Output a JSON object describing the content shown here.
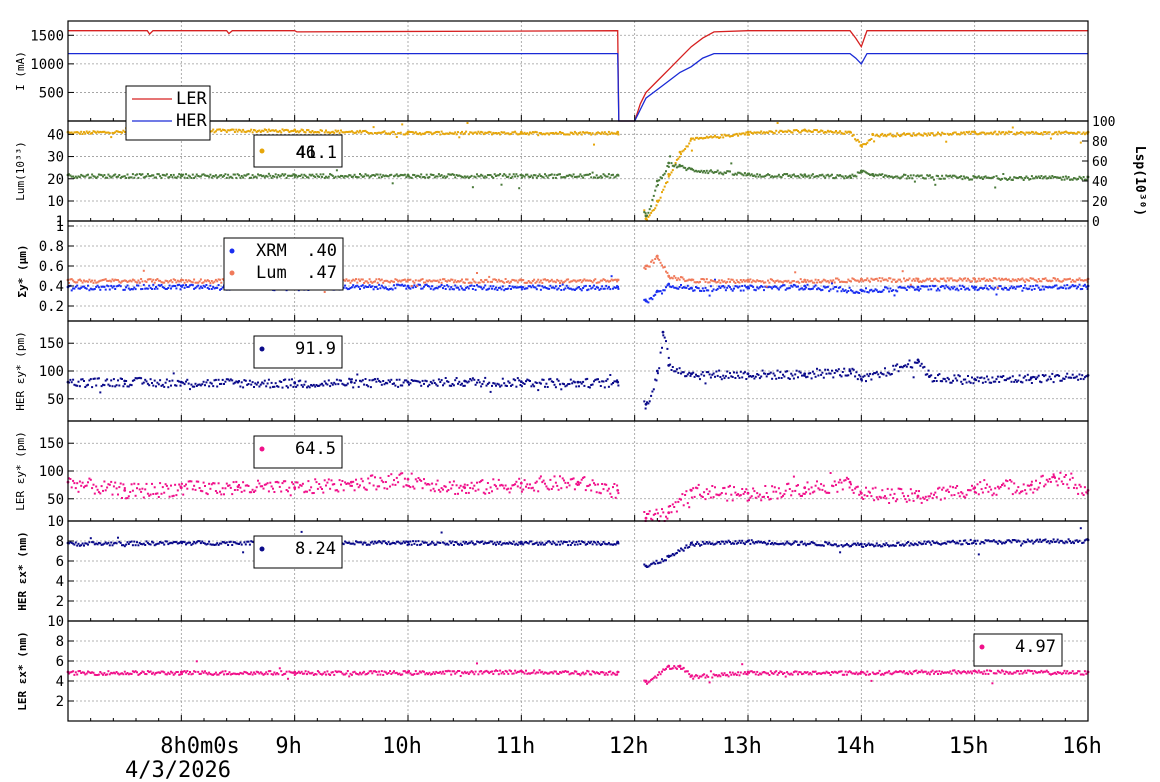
{
  "time_axis": {
    "ticks": [
      "8h0m0s",
      "9h",
      "10h",
      "11h",
      "12h",
      "13h",
      "14h",
      "15h",
      "16h"
    ],
    "date": "4/3/2026",
    "x_range_hours": [
      7.0,
      16.0
    ]
  },
  "colors": {
    "ler_current": "#d62020",
    "her_current": "#1a2ad6",
    "lum": "#e6a60a",
    "lsp": "#4a7a3a",
    "xrm": "#1a2ef0",
    "lum_size": "#f07a5a",
    "her_emit": "#0a0a8a",
    "ler_emit": "#f0108a"
  },
  "panels": [
    {
      "id": "current",
      "ylabel": "I (mA)",
      "yticks": [
        "500",
        "1000",
        "1500"
      ],
      "ylim": [
        0,
        1750
      ],
      "legend": [
        {
          "name": "LER",
          "value": ""
        },
        {
          "name": "HER",
          "value": ""
        }
      ]
    },
    {
      "id": "luminosity",
      "ylabel": "Lum(10³³)",
      "yticks": [
        "1",
        "10",
        "20",
        "30",
        "40"
      ],
      "ylim": [
        1,
        46
      ],
      "y2label": "Lsp(10³⁰)",
      "y2ticks": [
        "0",
        "20",
        "40",
        "60",
        "80",
        "100"
      ],
      "y2lim": [
        0,
        100
      ],
      "legend": [
        {
          "name": "",
          "value": "41.1"
        },
        {
          "name": "",
          "value": "46"
        }
      ]
    },
    {
      "id": "sigma_y",
      "ylabel": "Σy* (μm)",
      "yticks": [
        "0.2",
        "0.4",
        "0.6",
        "0.8",
        "1"
      ],
      "ylim": [
        0.05,
        1.05
      ],
      "legend": [
        {
          "name": "XRM",
          "value": ".40"
        },
        {
          "name": "Lum",
          "value": ".47"
        }
      ]
    },
    {
      "id": "her_emit_y",
      "ylabel": "HER εy* (pm)",
      "yticks": [
        "50",
        "100",
        "150"
      ],
      "ylim": [
        10,
        190
      ],
      "legend": [
        {
          "name": "",
          "value": "91.9"
        }
      ]
    },
    {
      "id": "ler_emit_y",
      "ylabel": "LER εy* (pm)",
      "yticks": [
        "10",
        "50",
        "100",
        "150"
      ],
      "ylim": [
        10,
        190
      ],
      "legend": [
        {
          "name": "",
          "value": "64.5"
        }
      ]
    },
    {
      "id": "her_emit_x",
      "ylabel": "HER εx* (nm)",
      "yticks": [
        "2",
        "4",
        "6",
        "8"
      ],
      "ylim": [
        0,
        10
      ],
      "legend": [
        {
          "name": "",
          "value": "8.24"
        }
      ]
    },
    {
      "id": "ler_emit_x",
      "ylabel": "LER εx* (nm)",
      "yticks": [
        "2",
        "4",
        "6",
        "8",
        "10"
      ],
      "ylim": [
        0,
        10
      ],
      "legend": [
        {
          "name": "",
          "value": "4.97"
        }
      ]
    }
  ],
  "chart_data": [
    {
      "type": "line",
      "panel": "current",
      "ylabel": "I (mA)",
      "ylim": [
        0,
        1750
      ],
      "series": [
        {
          "name": "LER",
          "x": [
            7.0,
            7.7,
            7.72,
            7.75,
            8.4,
            8.42,
            8.45,
            9.0,
            9.02,
            11.85,
            11.86,
            11.9,
            12.0,
            12.05,
            12.1,
            12.2,
            12.3,
            12.4,
            12.5,
            12.6,
            12.7,
            13.0,
            13.9,
            13.95,
            14.0,
            14.05,
            16.0
          ],
          "y": [
            1580,
            1580,
            1520,
            1580,
            1580,
            1530,
            1580,
            1580,
            1560,
            1580,
            0,
            0,
            0,
            300,
            500,
            700,
            900,
            1100,
            1300,
            1450,
            1560,
            1580,
            1580,
            1450,
            1300,
            1580,
            1580
          ]
        },
        {
          "name": "HER",
          "x": [
            7.0,
            11.85,
            11.86,
            11.9,
            12.0,
            12.05,
            12.1,
            12.2,
            12.3,
            12.4,
            12.5,
            12.6,
            12.7,
            13.0,
            13.9,
            13.95,
            14.0,
            14.05,
            16.0
          ],
          "y": [
            1180,
            1180,
            0,
            0,
            0,
            200,
            400,
            550,
            700,
            850,
            950,
            1100,
            1180,
            1180,
            1180,
            1100,
            1000,
            1180,
            1180
          ]
        }
      ]
    },
    {
      "type": "scatter",
      "panel": "luminosity",
      "series": [
        {
          "name": "",
          "axis": "left",
          "x": [
            7.0,
            8.0,
            9.0,
            10.0,
            11.0,
            11.85,
            12.1,
            12.2,
            12.3,
            12.4,
            12.5,
            13.0,
            13.5,
            13.9,
            14.0,
            14.1,
            15.0,
            16.0
          ],
          "y": [
            41,
            42,
            42,
            41,
            41,
            41,
            2,
            10,
            22,
            32,
            38,
            41,
            42,
            41,
            35,
            40,
            41,
            41
          ]
        },
        {
          "name": "",
          "axis": "right",
          "x": [
            7.0,
            8.0,
            9.0,
            10.0,
            11.0,
            11.85,
            12.1,
            12.2,
            12.3,
            12.4,
            12.5,
            13.0,
            13.5,
            13.9,
            14.0,
            14.1,
            15.0,
            16.0
          ],
          "y": [
            46,
            46,
            46,
            46,
            46,
            46,
            5,
            40,
            58,
            55,
            52,
            47,
            46,
            45,
            50,
            46,
            44,
            44
          ]
        }
      ]
    },
    {
      "type": "scatter",
      "panel": "sigma_y",
      "series": [
        {
          "name": "XRM",
          "x": [
            7.0,
            8.0,
            9.0,
            10.0,
            11.0,
            11.85,
            12.1,
            12.2,
            12.3,
            12.5,
            13.0,
            13.5,
            14.0,
            14.5,
            15.0,
            16.0
          ],
          "y": [
            0.39,
            0.4,
            0.39,
            0.4,
            0.39,
            0.39,
            0.25,
            0.35,
            0.42,
            0.38,
            0.39,
            0.4,
            0.36,
            0.39,
            0.39,
            0.4
          ]
        },
        {
          "name": "Lum",
          "x": [
            7.0,
            8.0,
            9.0,
            10.0,
            11.0,
            11.85,
            12.1,
            12.2,
            12.3,
            12.5,
            13.0,
            13.5,
            14.0,
            14.5,
            15.0,
            16.0
          ],
          "y": [
            0.46,
            0.46,
            0.46,
            0.46,
            0.46,
            0.46,
            0.6,
            0.7,
            0.5,
            0.46,
            0.46,
            0.46,
            0.47,
            0.47,
            0.47,
            0.47
          ]
        }
      ]
    },
    {
      "type": "scatter",
      "panel": "her_emit_y",
      "series": [
        {
          "name": "",
          "x": [
            7.0,
            7.5,
            8.0,
            8.5,
            9.0,
            9.5,
            10.0,
            10.5,
            11.0,
            11.5,
            11.85,
            12.1,
            12.2,
            12.25,
            12.3,
            12.5,
            13.0,
            13.5,
            13.9,
            14.0,
            14.5,
            14.6,
            15.0,
            15.5,
            16.0
          ],
          "y": [
            80,
            82,
            80,
            80,
            79,
            80,
            80,
            82,
            81,
            80,
            80,
            40,
            100,
            170,
            110,
            95,
            95,
            95,
            100,
            85,
            120,
            90,
            85,
            88,
            92
          ]
        }
      ]
    },
    {
      "type": "scatter",
      "panel": "ler_emit_y",
      "series": [
        {
          "name": "",
          "x": [
            7.0,
            7.5,
            8.0,
            8.5,
            9.0,
            9.5,
            10.0,
            10.5,
            11.0,
            11.5,
            11.85,
            12.1,
            12.3,
            12.5,
            13.0,
            13.5,
            13.9,
            14.0,
            14.5,
            15.0,
            15.5,
            15.7,
            16.0
          ],
          "y": [
            80,
            65,
            70,
            72,
            70,
            80,
            85,
            70,
            78,
            80,
            65,
            15,
            25,
            65,
            60,
            70,
            80,
            60,
            55,
            70,
            75,
            90,
            65
          ]
        }
      ]
    },
    {
      "type": "scatter",
      "panel": "her_emit_x",
      "series": [
        {
          "name": "",
          "x": [
            7.0,
            8.0,
            9.0,
            10.0,
            11.0,
            11.85,
            12.1,
            12.3,
            12.5,
            13.0,
            14.0,
            15.0,
            16.0
          ],
          "y": [
            7.8,
            7.9,
            7.9,
            7.9,
            7.9,
            7.9,
            5.5,
            6.5,
            7.8,
            8.0,
            7.7,
            8.0,
            8.1
          ]
        }
      ]
    },
    {
      "type": "scatter",
      "panel": "ler_emit_x",
      "series": [
        {
          "name": "",
          "x": [
            7.0,
            8.0,
            9.0,
            10.0,
            11.0,
            11.85,
            12.1,
            12.3,
            12.4,
            12.5,
            13.0,
            14.0,
            15.0,
            16.0
          ],
          "y": [
            4.9,
            4.9,
            4.9,
            4.9,
            5.0,
            4.9,
            4.0,
            5.5,
            5.5,
            4.5,
            4.9,
            4.9,
            5.0,
            4.9
          ]
        }
      ]
    }
  ]
}
